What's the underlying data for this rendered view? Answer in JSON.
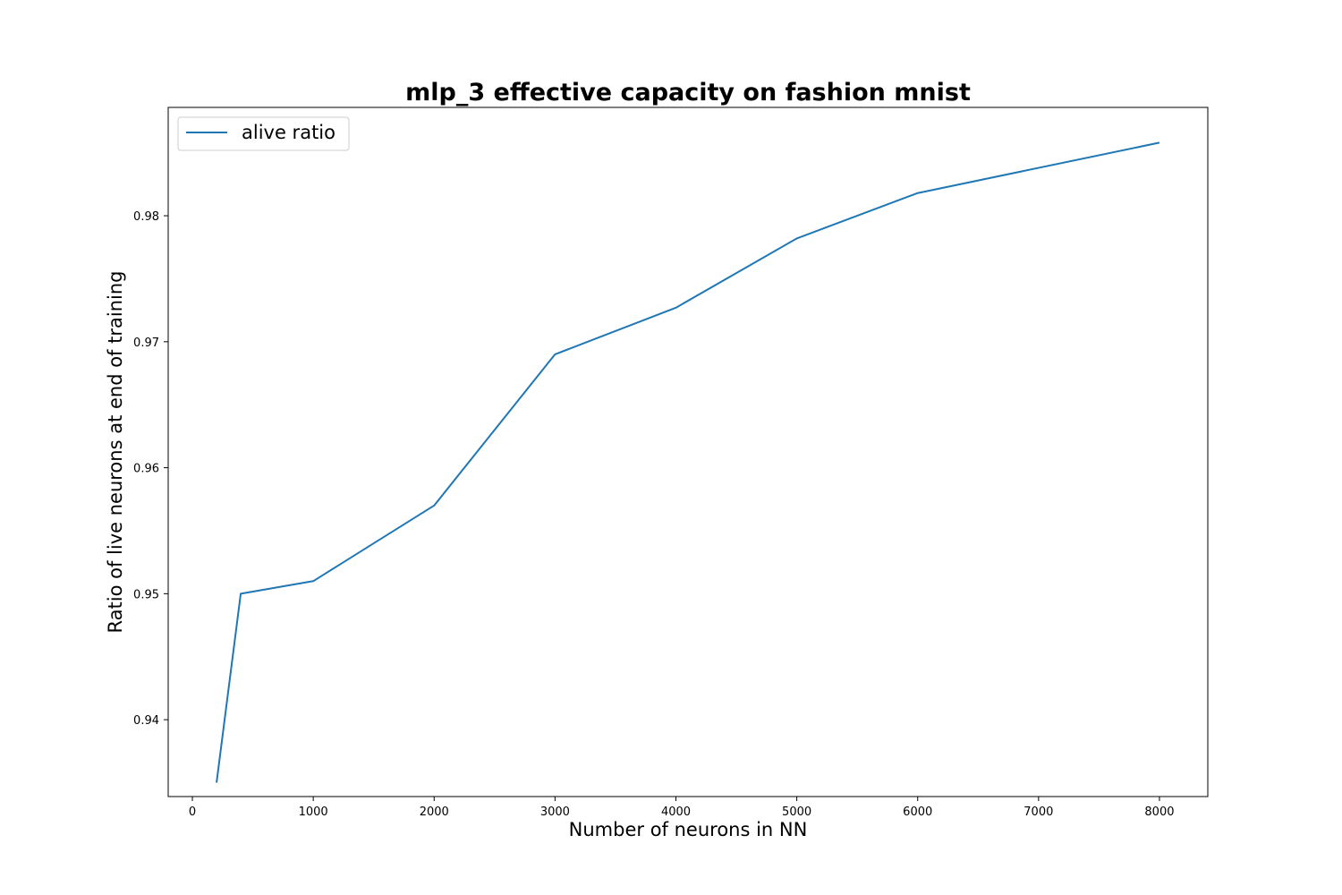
{
  "chart_data": {
    "type": "line",
    "title": "mlp_3 effective capacity on fashion mnist",
    "xlabel": "Number of neurons in NN",
    "ylabel": "Ratio of live neurons at end of training",
    "xlim": [
      -200,
      8400
    ],
    "ylim": [
      0.9339,
      0.9886
    ],
    "xticks": [
      0,
      1000,
      2000,
      3000,
      4000,
      5000,
      6000,
      7000,
      8000
    ],
    "xtick_labels": [
      "0",
      "1000",
      "2000",
      "3000",
      "4000",
      "5000",
      "6000",
      "7000",
      "8000"
    ],
    "yticks": [
      0.94,
      0.95,
      0.96,
      0.97,
      0.98
    ],
    "ytick_labels": [
      "0.94",
      "0.95",
      "0.96",
      "0.97",
      "0.98"
    ],
    "grid": false,
    "legend_position": "upper-left",
    "series": [
      {
        "name": "alive ratio",
        "color": "#1f77b4",
        "x": [
          200,
          400,
          1000,
          2000,
          3000,
          4000,
          5000,
          6000,
          8000
        ],
        "y": [
          0.935,
          0.95,
          0.951,
          0.957,
          0.969,
          0.9727,
          0.9782,
          0.9818,
          0.9858
        ]
      }
    ]
  }
}
